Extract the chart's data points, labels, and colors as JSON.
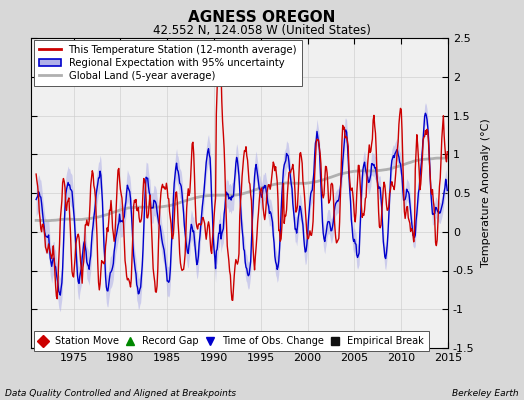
{
  "title": "AGNESS OREGON",
  "subtitle": "42.552 N, 124.058 W (United States)",
  "ylabel": "Temperature Anomaly (°C)",
  "footer_left": "Data Quality Controlled and Aligned at Breakpoints",
  "footer_right": "Berkeley Earth",
  "xlim": [
    1970.5,
    2015
  ],
  "ylim": [
    -1.5,
    2.5
  ],
  "yticks": [
    -1.5,
    -1.0,
    -0.5,
    0.0,
    0.5,
    1.0,
    1.5,
    2.0,
    2.5
  ],
  "xticks": [
    1975,
    1980,
    1985,
    1990,
    1995,
    2000,
    2005,
    2010,
    2015
  ],
  "bg_color": "#d8d8d8",
  "plot_bg_color": "#f0f0f0",
  "legend_entries": [
    "This Temperature Station (12-month average)",
    "Regional Expectation with 95% uncertainty",
    "Global Land (5-year average)"
  ],
  "bottom_legend_labels": [
    "Station Move",
    "Record Gap",
    "Time of Obs. Change",
    "Empirical Break"
  ],
  "bottom_legend_colors": [
    "#cc0000",
    "#008800",
    "#0000cc",
    "#111111"
  ],
  "bottom_legend_markers": [
    "D",
    "^",
    "v",
    "s"
  ],
  "red_color": "#cc0000",
  "blue_color": "#0000cc",
  "blue_fill_color": "#b0b0e8",
  "gray_color": "#b0b0b0",
  "grid_color": "#cccccc",
  "grid_alpha": 0.7
}
